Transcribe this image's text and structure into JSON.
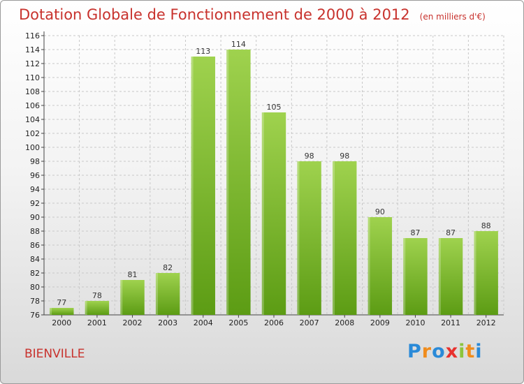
{
  "title": "Dotation Globale de Fonctionnement de 2000 à 2012",
  "title_unit": "(en milliers d'€)",
  "commune": "BIENVILLE",
  "logo": {
    "text": "Proxiti",
    "letters": [
      {
        "char": "P",
        "color": "#2a8ad8"
      },
      {
        "char": "r",
        "color": "#f08c1c"
      },
      {
        "char": "o",
        "color": "#2a8ad8"
      },
      {
        "char": "x",
        "color": "#e8312e"
      },
      {
        "char": "i",
        "color": "#8cc43c"
      },
      {
        "char": "t",
        "color": "#f08c1c"
      },
      {
        "char": "i",
        "color": "#2a8ad8"
      }
    ]
  },
  "colors": {
    "bar_light": "#9fd24e",
    "bar_dark": "#5c9c14",
    "title": "#c8322d",
    "grid": "#c8c8c8"
  },
  "chart_data": {
    "type": "bar",
    "title": "Dotation Globale de Fonctionnement de 2000 à 2012",
    "subtitle": "(en milliers d'€)",
    "xlabel": "",
    "ylabel": "",
    "categories": [
      "2000",
      "2001",
      "2002",
      "2003",
      "2004",
      "2005",
      "2006",
      "2007",
      "2008",
      "2009",
      "2010",
      "2011",
      "2012"
    ],
    "values": [
      77,
      78,
      81,
      82,
      113,
      114,
      105,
      98,
      98,
      90,
      87,
      87,
      88
    ],
    "ylim": [
      76,
      116
    ],
    "ytick_step": 2,
    "grid": true,
    "legend": "none"
  }
}
